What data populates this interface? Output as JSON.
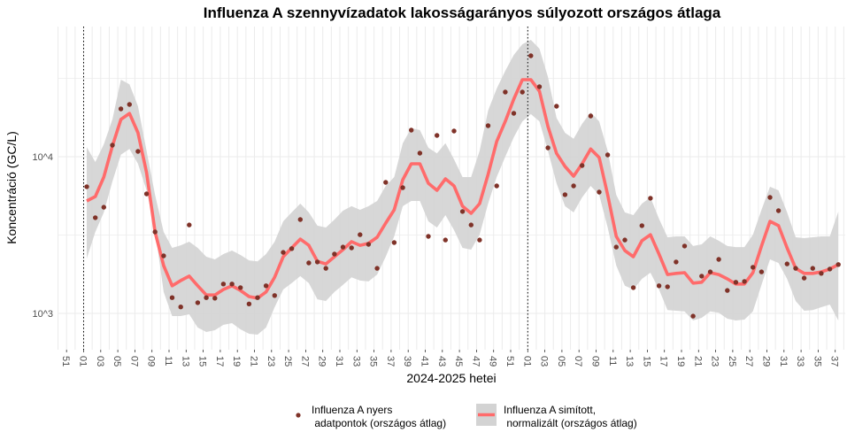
{
  "chart_data": {
    "type": "line",
    "title": "Influenza A szennyvízadatok lakosságarányos súlyozott országos átlaga",
    "xlabel": "2024-2025 hetei",
    "ylabel": "Koncentráció (GC/L)",
    "y_scale": "log10",
    "ylim": [
      560,
      70000
    ],
    "y_ticks": [
      {
        "value": 1000,
        "label": "10^3"
      },
      {
        "value": 10000,
        "label": "10^4"
      }
    ],
    "x_tick_labels": [
      "51",
      "01",
      "03",
      "05",
      "07",
      "09",
      "11",
      "13",
      "15",
      "17",
      "19",
      "21",
      "23",
      "25",
      "27",
      "29",
      "31",
      "33",
      "35",
      "37",
      "39",
      "41",
      "43",
      "45",
      "47",
      "49",
      "51",
      "01",
      "03",
      "05",
      "07",
      "09",
      "11",
      "13",
      "15",
      "17",
      "19",
      "21",
      "23",
      "25",
      "27",
      "29",
      "31",
      "33",
      "35",
      "37"
    ],
    "x_first_tick_week": "2023-W51",
    "x_first_week": "2024-W01",
    "x_last_week": "2025-W37",
    "vertical_markers": [
      "2024-W01",
      "2025-W01"
    ],
    "grid": true,
    "legend_position": "bottom",
    "colors": {
      "points": "#7f3228",
      "line": "#ff6b6b",
      "band": "#d3d3d3"
    },
    "series": [
      {
        "name": "Influenza A nyers\n adatpontok (országos átlag)",
        "legend_lines": [
          "Influenza A nyers",
          " adatpontok (országos átlag)"
        ],
        "kind": "points",
        "values": [
          6430,
          4080,
          4760,
          11840,
          20180,
          21550,
          10810,
          5790,
          3310,
          2330,
          1260,
          1100,
          3670,
          1170,
          1260,
          1250,
          1540,
          1540,
          1460,
          1150,
          1260,
          1500,
          1300,
          2450,
          2590,
          3970,
          2100,
          2130,
          1940,
          2390,
          2650,
          2620,
          3180,
          2760,
          1940,
          6860,
          2830,
          6340,
          14770,
          10530,
          3100,
          13660,
          2940,
          14580,
          4470,
          3670,
          2940,
          15770,
          6510,
          25850,
          18920,
          25850,
          44060,
          27950,
          11390,
          20990,
          5720,
          6510,
          8780,
          18200,
          5940,
          10260,
          2650,
          2940,
          1460,
          3630,
          5430,
          1500,
          1480,
          2130,
          2690,
          960,
          1730,
          1840,
          2210,
          1400,
          1580,
          1600,
          1970,
          1840,
          5500,
          4520,
          2070,
          1940,
          1680,
          1940,
          1800,
          1920,
          2050
        ]
      },
      {
        "name": "Influenza A simított,\n normalizált (országos átlag)",
        "legend_lines": [
          "Influenza A simított,",
          " normalizált (országos átlag)"
        ],
        "kind": "line_with_band",
        "values": [
          5220,
          5570,
          7410,
          11700,
          17300,
          18900,
          14200,
          7910,
          3310,
          2020,
          1500,
          1620,
          1730,
          1500,
          1310,
          1310,
          1420,
          1500,
          1400,
          1280,
          1250,
          1370,
          1700,
          2300,
          2620,
          2980,
          2720,
          2150,
          2070,
          2300,
          2550,
          2870,
          2720,
          2800,
          3060,
          3770,
          4580,
          7130,
          9010,
          9010,
          6770,
          6100,
          7220,
          6510,
          4830,
          4350,
          5020,
          7710,
          12500,
          16800,
          23300,
          31000,
          31000,
          26200,
          15600,
          10500,
          8670,
          7510,
          9010,
          11200,
          9870,
          5710,
          3100,
          2520,
          2300,
          2910,
          3180,
          2390,
          1770,
          1800,
          1820,
          1560,
          1580,
          1820,
          1770,
          1660,
          1540,
          1540,
          1820,
          2690,
          3870,
          3630,
          2620,
          1940,
          1800,
          1800,
          1840,
          1920,
          2050
        ],
        "upper": [
          11500,
          9250,
          12000,
          17300,
          31000,
          29000,
          21000,
          10900,
          5710,
          3310,
          2620,
          2720,
          2870,
          2620,
          2300,
          2210,
          2390,
          2520,
          2360,
          2180,
          2150,
          2390,
          2870,
          3870,
          4410,
          5020,
          4410,
          3630,
          3530,
          3970,
          4520,
          4830,
          4580,
          4830,
          5220,
          6510,
          7410,
          12200,
          15200,
          14800,
          11400,
          10500,
          12200,
          9620,
          7410,
          7410,
          10900,
          19700,
          27200,
          35300,
          44600,
          52200,
          55700,
          48900,
          32300,
          17700,
          14200,
          13000,
          16200,
          19200,
          16800,
          10900,
          5710,
          4410,
          4240,
          5020,
          5500,
          4020,
          3060,
          3100,
          3100,
          2690,
          2760,
          3100,
          2910,
          2690,
          2650,
          2650,
          3180,
          4580,
          6430,
          6100,
          4410,
          3060,
          3020,
          3060,
          3100,
          3100,
          4460
        ],
        "lower": [
          2240,
          3310,
          4410,
          6950,
          10300,
          11200,
          9010,
          6100,
          3400,
          1370,
          962,
          962,
          987,
          812,
          761,
          781,
          845,
          867,
          791,
          741,
          732,
          812,
          1095,
          1420,
          1560,
          1730,
          1560,
          1230,
          1200,
          1370,
          1520,
          1700,
          1620,
          1600,
          1770,
          2300,
          3100,
          4830,
          5220,
          5220,
          3870,
          3530,
          4240,
          3400,
          2620,
          2550,
          3180,
          5020,
          7410,
          10000,
          13300,
          16800,
          18700,
          16800,
          10900,
          6770,
          4830,
          4410,
          5500,
          6510,
          5710,
          3530,
          2020,
          1500,
          1420,
          1660,
          1820,
          1420,
          1050,
          1040,
          1030,
          901,
          937,
          1030,
          1010,
          925,
          901,
          913,
          1030,
          1520,
          2210,
          2100,
          1660,
          1200,
          1040,
          1050,
          1095,
          1139,
          901
        ]
      }
    ]
  }
}
